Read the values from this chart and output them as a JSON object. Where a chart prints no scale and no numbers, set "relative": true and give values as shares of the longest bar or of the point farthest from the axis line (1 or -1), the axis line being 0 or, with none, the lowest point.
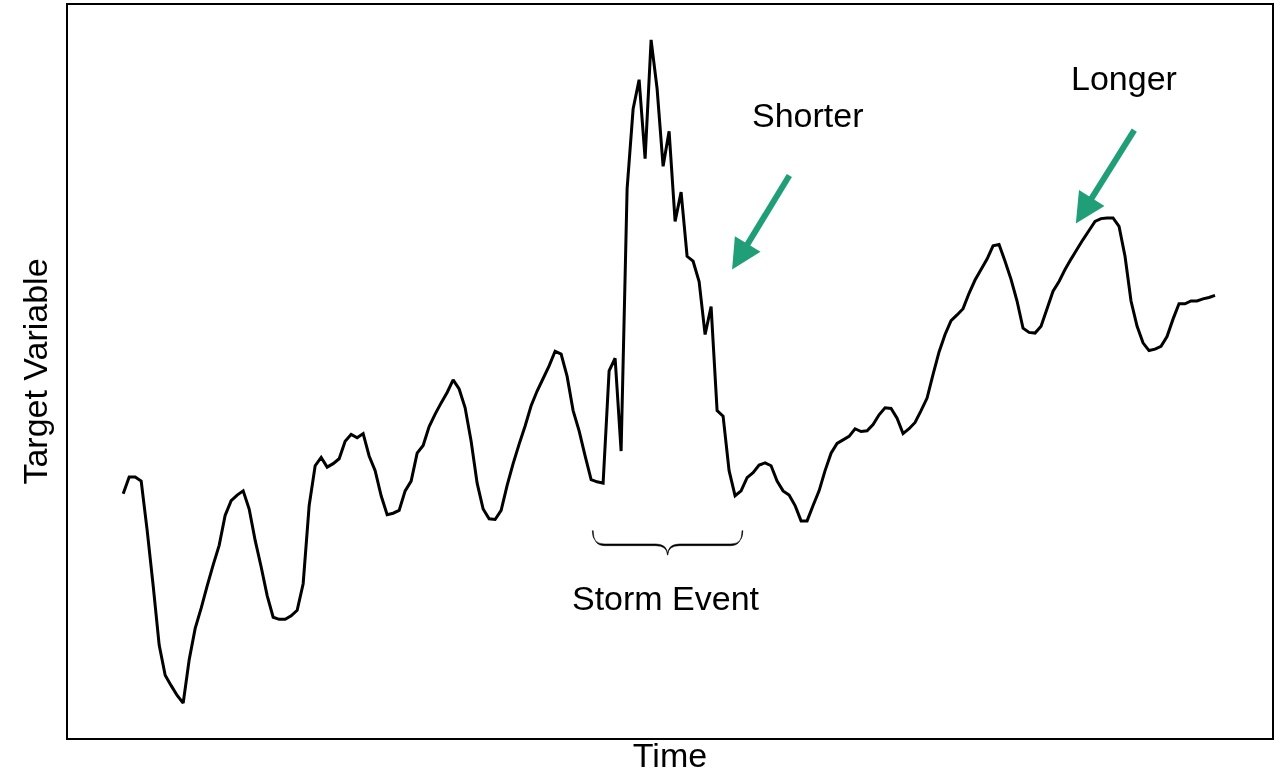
{
  "chart_data": {
    "type": "line",
    "relative": true,
    "xlabel": "Time",
    "ylabel": "Target Variable",
    "annotations": [
      "Shorter",
      "Longer",
      "Storm Event"
    ],
    "marker": "none",
    "line_style": "solid",
    "categories": [
      null,
      null,
      null,
      null,
      null,
      null,
      null,
      null,
      null,
      null,
      null,
      null,
      null,
      null,
      null,
      null,
      null,
      null,
      null,
      null,
      null,
      null,
      null,
      null,
      null,
      null,
      null,
      null,
      null,
      null,
      null,
      null,
      null,
      null,
      null,
      null,
      null,
      null,
      null,
      null,
      null,
      null,
      null,
      null,
      null,
      null,
      null,
      null,
      null,
      null,
      null,
      null,
      null,
      null,
      null,
      null,
      null,
      null,
      null,
      null,
      null,
      null,
      null,
      null,
      null,
      null,
      null,
      null,
      null,
      null,
      null,
      null,
      null,
      null,
      null,
      null,
      null,
      null,
      null,
      null,
      null,
      null,
      null,
      null,
      null,
      null,
      null,
      null,
      null,
      null,
      null,
      null,
      null,
      null,
      null,
      null,
      null,
      null,
      null,
      null,
      null,
      null,
      null,
      null,
      null,
      null,
      null,
      null,
      null,
      null,
      null,
      null,
      null,
      null,
      null,
      null,
      null,
      null,
      null,
      null,
      null,
      null,
      null,
      null,
      null,
      null,
      null,
      null,
      null,
      null,
      null,
      null,
      null,
      null,
      null,
      null,
      null,
      null,
      null,
      null,
      null,
      null,
      null,
      null,
      null,
      null,
      null,
      null,
      null,
      null,
      null,
      null,
      null,
      null,
      null,
      null,
      null,
      null,
      null,
      null,
      null,
      null,
      null,
      null,
      null,
      null,
      null,
      null,
      null,
      null,
      null,
      null,
      null,
      null,
      null,
      null,
      null,
      null,
      null,
      null,
      null,
      null,
      null
    ],
    "series": [
      {
        "color": "#000000",
        "values": [
          0.35,
          0.374,
          0.374,
          0.368,
          0.297,
          0.218,
          0.133,
          0.09,
          0.075,
          0.061,
          0.05,
          0.112,
          0.157,
          0.186,
          0.218,
          0.248,
          0.276,
          0.319,
          0.34,
          0.348,
          0.354,
          0.328,
          0.283,
          0.245,
          0.204,
          0.173,
          0.17,
          0.17,
          0.175,
          0.183,
          0.221,
          0.333,
          0.39,
          0.402,
          0.388,
          0.393,
          0.4,
          0.425,
          0.435,
          0.43,
          0.436,
          0.404,
          0.383,
          0.347,
          0.32,
          0.322,
          0.326,
          0.354,
          0.368,
          0.408,
          0.419,
          0.446,
          0.464,
          0.48,
          0.495,
          0.513,
          0.5,
          0.473,
          0.425,
          0.365,
          0.328,
          0.314,
          0.313,
          0.326,
          0.362,
          0.393,
          0.421,
          0.447,
          0.476,
          0.497,
          0.515,
          0.533,
          0.554,
          0.55,
          0.518,
          0.469,
          0.44,
          0.404,
          0.37,
          0.367,
          0.365,
          0.526,
          0.544,
          0.411,
          0.787,
          0.901,
          0.943,
          0.83,
          1,
          0.93,
          0.819,
          0.869,
          0.74,
          0.782,
          0.69,
          0.683,
          0.654,
          0.578,
          0.618,
          0.469,
          0.461,
          0.383,
          0.347,
          0.354,
          0.373,
          0.38,
          0.391,
          0.394,
          0.39,
          0.368,
          0.354,
          0.348,
          0.333,
          0.311,
          0.311,
          0.333,
          0.354,
          0.383,
          0.408,
          0.422,
          0.427,
          0.432,
          0.443,
          0.439,
          0.44,
          0.449,
          0.463,
          0.473,
          0.472,
          0.458,
          0.436,
          0.443,
          0.452,
          0.469,
          0.487,
          0.521,
          0.553,
          0.578,
          0.598,
          0.606,
          0.615,
          0.637,
          0.656,
          0.671,
          0.686,
          0.705,
          0.707,
          0.683,
          0.657,
          0.626,
          0.587,
          0.581,
          0.58,
          0.59,
          0.615,
          0.64,
          0.654,
          0.671,
          0.686,
          0.7,
          0.714,
          0.727,
          0.74,
          0.744,
          0.745,
          0.745,
          0.733,
          0.69,
          0.626,
          0.59,
          0.566,
          0.555,
          0.557,
          0.561,
          0.575,
          0.6,
          0.622,
          0.622,
          0.626,
          0.626,
          0.629,
          0.631,
          0.634
        ]
      }
    ]
  }
}
